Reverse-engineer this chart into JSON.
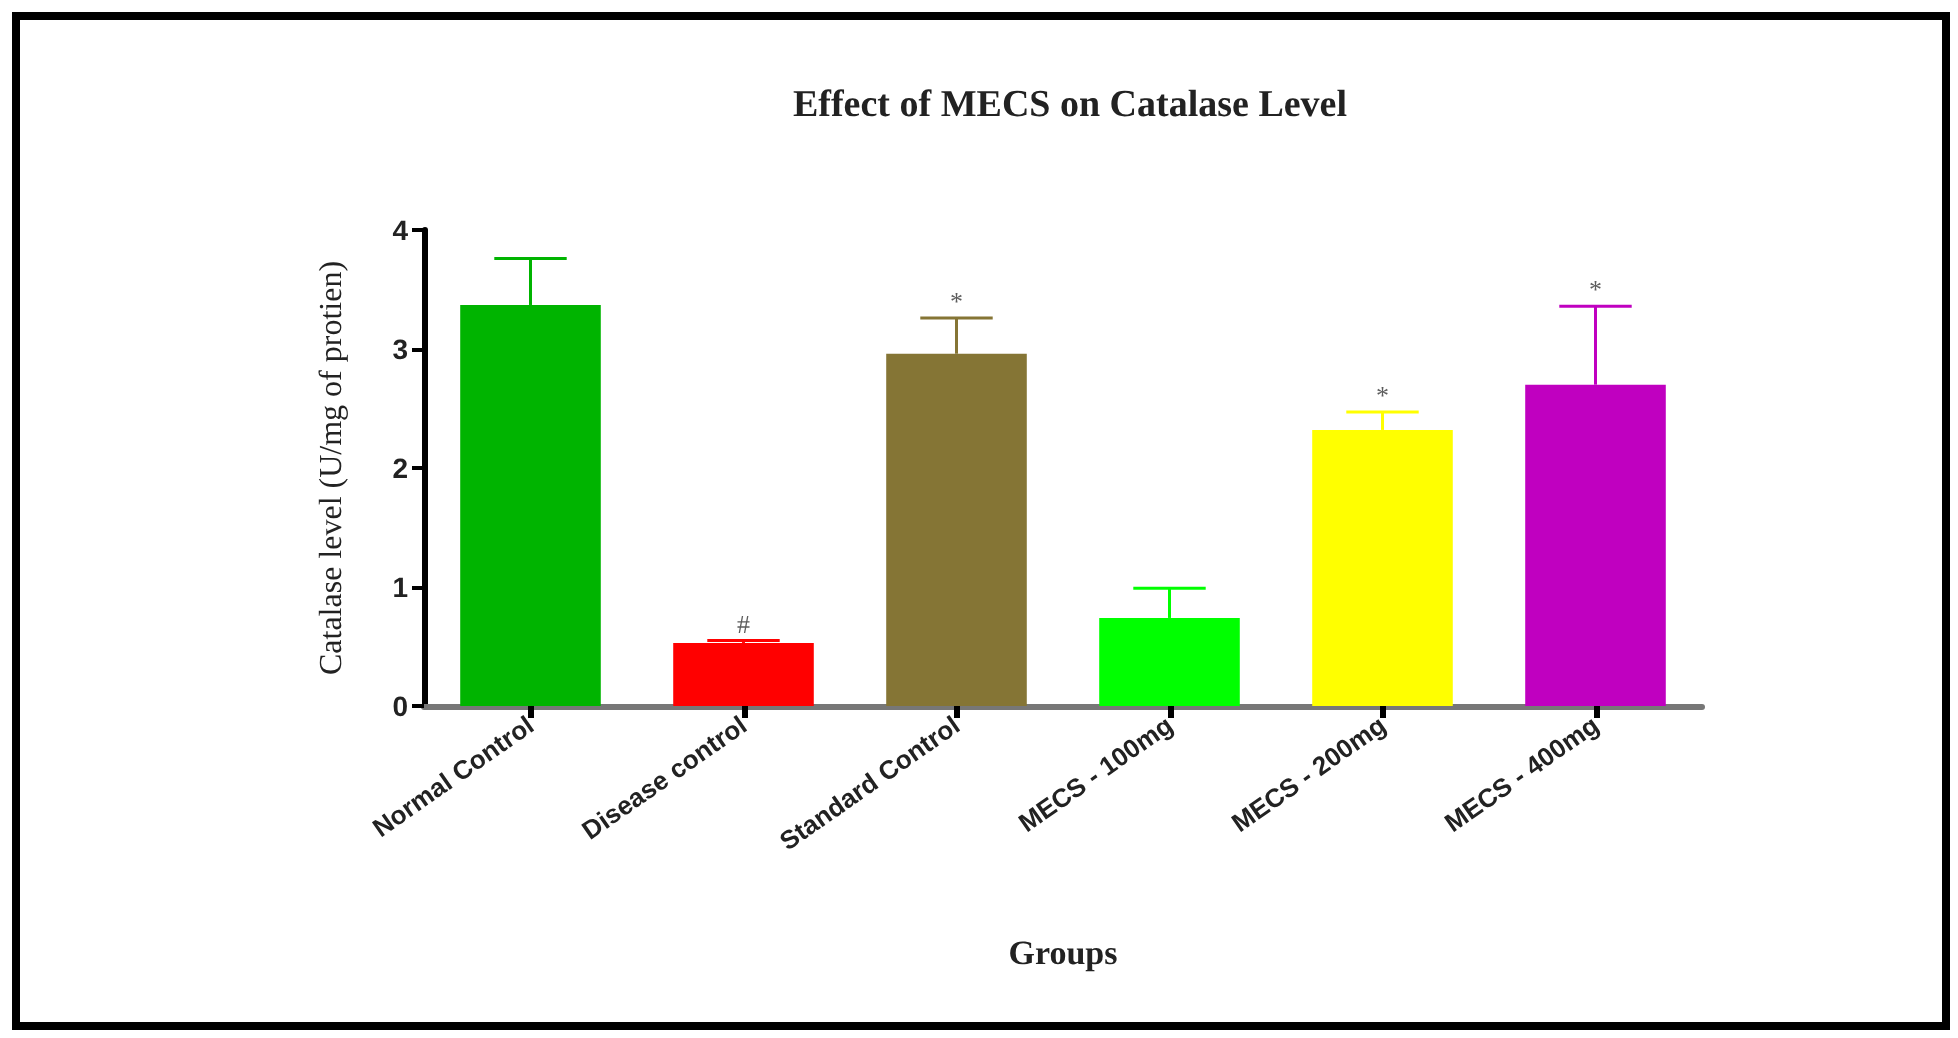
{
  "chart_data": {
    "type": "bar",
    "title": "Effect of MECS on Catalase Level",
    "xlabel": "Groups",
    "ylabel": "Catalase level (U/mg of protien)",
    "categories": [
      "Normal Control",
      "Disease control",
      "Standard Control",
      "MECS - 100mg",
      "MECS - 200mg",
      "MECS - 400mg"
    ],
    "values": [
      3.37,
      0.53,
      2.96,
      0.74,
      2.32,
      2.7
    ],
    "colors": [
      "#00b400",
      "#ff0000",
      "#857535",
      "#00ff00",
      "#ffff00",
      "#c000c0"
    ],
    "errors": [
      [
        3.37,
        3.76
      ],
      [
        0.53,
        0.55
      ],
      [
        2.96,
        3.26
      ],
      [
        0.74,
        0.99
      ],
      [
        2.32,
        2.47
      ],
      [
        2.7,
        3.36
      ]
    ],
    "ylim": [
      0,
      4
    ],
    "yticks": [
      0,
      1,
      2,
      3,
      4
    ],
    "annotations": [
      {
        "text": "#",
        "x": "Disease control",
        "y": 0.55
      },
      {
        "text": "*",
        "x": "Standard Control",
        "y": 3.26
      },
      {
        "text": "*",
        "x": "MECS - 200mg",
        "y": 2.47
      },
      {
        "text": "*",
        "x": "MECS - 400mg",
        "y": 3.36
      }
    ]
  }
}
